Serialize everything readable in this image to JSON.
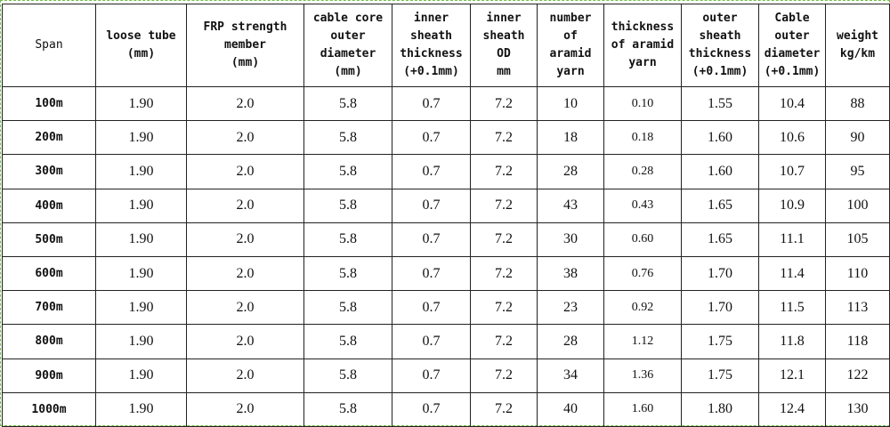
{
  "columns": [
    {
      "lines": [
        "Span"
      ],
      "bold": false
    },
    {
      "lines": [
        "loose tube",
        "(mm)"
      ],
      "bold": true
    },
    {
      "lines": [
        "FRP strength",
        "member",
        "(mm)"
      ],
      "bold": true
    },
    {
      "lines": [
        "cable core",
        "outer",
        "diameter",
        "(mm)"
      ],
      "bold": true
    },
    {
      "lines": [
        "inner",
        "sheath",
        "thickness",
        "(+0.1mm)"
      ],
      "bold": true
    },
    {
      "lines": [
        "inner",
        "sheath",
        "OD",
        "mm"
      ],
      "bold": true
    },
    {
      "lines": [
        "number",
        "of",
        "aramid",
        "yarn"
      ],
      "bold": true
    },
    {
      "lines": [
        "thickness",
        "of aramid",
        "yarn"
      ],
      "bold": true
    },
    {
      "lines": [
        "outer",
        "sheath",
        "thickness",
        "(+0.1mm)"
      ],
      "bold": true
    },
    {
      "lines": [
        "Cable",
        "outer",
        "diameter",
        "(+0.1mm)"
      ],
      "bold": true
    },
    {
      "lines": [
        "weight",
        "kg/km"
      ],
      "bold": true
    }
  ],
  "rows": [
    [
      "100m",
      "1.90",
      "2.0",
      "5.8",
      "0.7",
      "7.2",
      "10",
      "0.10",
      "1.55",
      "10.4",
      "88"
    ],
    [
      "200m",
      "1.90",
      "2.0",
      "5.8",
      "0.7",
      "7.2",
      "18",
      "0.18",
      "1.60",
      "10.6",
      "90"
    ],
    [
      "300m",
      "1.90",
      "2.0",
      "5.8",
      "0.7",
      "7.2",
      "28",
      "0.28",
      "1.60",
      "10.7",
      "95"
    ],
    [
      "400m",
      "1.90",
      "2.0",
      "5.8",
      "0.7",
      "7.2",
      "43",
      "0.43",
      "1.65",
      "10.9",
      "100"
    ],
    [
      "500m",
      "1.90",
      "2.0",
      "5.8",
      "0.7",
      "7.2",
      "30",
      "0.60",
      "1.65",
      "11.1",
      "105"
    ],
    [
      "600m",
      "1.90",
      "2.0",
      "5.8",
      "0.7",
      "7.2",
      "38",
      "0.76",
      "1.70",
      "11.4",
      "110"
    ],
    [
      "700m",
      "1.90",
      "2.0",
      "5.8",
      "0.7",
      "7.2",
      "23",
      "0.92",
      "1.70",
      "11.5",
      "113"
    ],
    [
      "800m",
      "1.90",
      "2.0",
      "5.8",
      "0.7",
      "7.2",
      "28",
      "1.12",
      "1.75",
      "11.8",
      "118"
    ],
    [
      "900m",
      "1.90",
      "2.0",
      "5.8",
      "0.7",
      "7.2",
      "34",
      "1.36",
      "1.75",
      "12.1",
      "122"
    ],
    [
      "1000m",
      "1.90",
      "2.0",
      "5.8",
      "0.7",
      "7.2",
      "40",
      "1.60",
      "1.80",
      "12.4",
      "130"
    ]
  ]
}
